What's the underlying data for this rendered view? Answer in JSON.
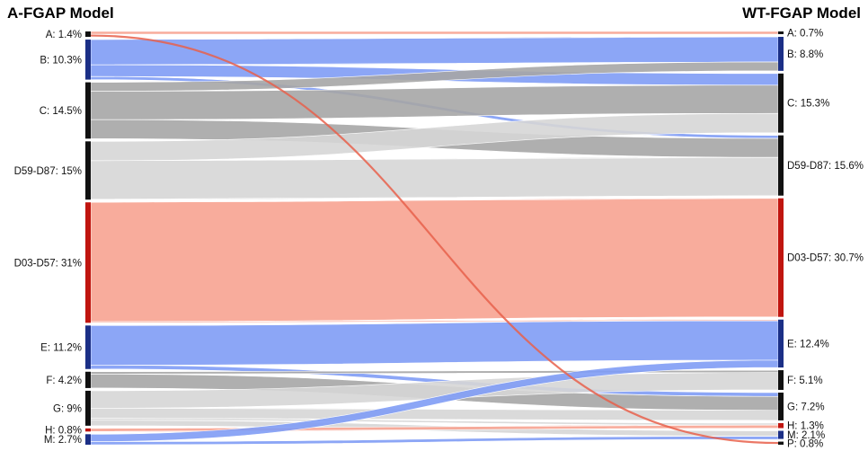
{
  "titles": {
    "left": "A-FGAP Model",
    "right": "WT-FGAP Model"
  },
  "colors": {
    "blue": "#7f9cf5",
    "gray_dark": "#a6a6a6",
    "gray_light": "#d6d6d6",
    "red": "#f7a391",
    "red_line": "#e8604b",
    "node_dark": "#111111",
    "node_blue": "#1b2f86",
    "node_red": "#c0150f"
  },
  "chart_data": {
    "type": "sankey",
    "left_nodes": [
      {
        "id": "A",
        "label": "A: 1.4%",
        "value": 1.4
      },
      {
        "id": "B",
        "label": "B: 10.3%",
        "value": 10.3
      },
      {
        "id": "C",
        "label": "C: 14.5%",
        "value": 14.5
      },
      {
        "id": "D59-D87",
        "label": "D59-D87:  15%",
        "value": 15
      },
      {
        "id": "D03-D57",
        "label": "D03-D57:  31%",
        "value": 31
      },
      {
        "id": "E",
        "label": "E: 11.2%",
        "value": 11.2
      },
      {
        "id": "F",
        "label": "F: 4.2%",
        "value": 4.2
      },
      {
        "id": "G",
        "label": "G:   9%",
        "value": 9
      },
      {
        "id": "H",
        "label": "H: 0.8%",
        "value": 0.8
      },
      {
        "id": "M",
        "label": "M: 2.7%",
        "value": 2.7
      }
    ],
    "right_nodes": [
      {
        "id": "A",
        "label": "A: 0.7%",
        "value": 0.7
      },
      {
        "id": "B",
        "label": "B: 8.8%",
        "value": 8.8
      },
      {
        "id": "C",
        "label": "C: 15.3%",
        "value": 15.3
      },
      {
        "id": "D59-D87",
        "label": "D59-D87: 15.6%",
        "value": 15.6
      },
      {
        "id": "D03-D57",
        "label": "D03-D57: 30.7%",
        "value": 30.7
      },
      {
        "id": "E",
        "label": "E: 12.4%",
        "value": 12.4
      },
      {
        "id": "F",
        "label": "F: 5.1%",
        "value": 5.1
      },
      {
        "id": "G",
        "label": "G: 7.2%",
        "value": 7.2
      },
      {
        "id": "H",
        "label": "H: 1.3%",
        "value": 1.3
      },
      {
        "id": "M",
        "label": "M: 2.1%",
        "value": 2.1
      },
      {
        "id": "P",
        "label": "P: 0.8%",
        "value": 0.8
      }
    ],
    "flows": [
      {
        "from": "A",
        "to": "A",
        "value": 0.7,
        "color": "red"
      },
      {
        "from": "A",
        "to": "P",
        "value": 0.7,
        "color": "red_line"
      },
      {
        "from": "B",
        "to": "B",
        "value": 6.5,
        "color": "blue"
      },
      {
        "from": "B",
        "to": "C",
        "value": 3.0,
        "color": "blue"
      },
      {
        "from": "B",
        "to": "D59-D87",
        "value": 0.8,
        "color": "blue"
      },
      {
        "from": "C",
        "to": "B",
        "value": 2.3,
        "color": "gray_dark"
      },
      {
        "from": "C",
        "to": "C",
        "value": 7.3,
        "color": "gray_dark"
      },
      {
        "from": "C",
        "to": "D59-D87",
        "value": 4.9,
        "color": "gray_dark"
      },
      {
        "from": "D59-D87",
        "to": "C",
        "value": 5.0,
        "color": "gray_light"
      },
      {
        "from": "D59-D87",
        "to": "D59-D87",
        "value": 9.9,
        "color": "gray_light"
      },
      {
        "from": "D03-D57",
        "to": "D03-D57",
        "value": 30.7,
        "color": "red"
      },
      {
        "from": "D03-D57",
        "to": "E",
        "value": 0.3,
        "color": "red"
      },
      {
        "from": "E",
        "to": "E",
        "value": 10.2,
        "color": "blue"
      },
      {
        "from": "E",
        "to": "G",
        "value": 1.0,
        "color": "blue"
      },
      {
        "from": "F",
        "to": "F",
        "value": 0.6,
        "color": "gray_dark"
      },
      {
        "from": "F",
        "to": "G",
        "value": 3.6,
        "color": "gray_dark"
      },
      {
        "from": "G",
        "to": "F",
        "value": 4.5,
        "color": "gray_light"
      },
      {
        "from": "G",
        "to": "G",
        "value": 2.6,
        "color": "gray_light"
      },
      {
        "from": "G",
        "to": "H",
        "value": 0.5,
        "color": "gray_light"
      },
      {
        "from": "G",
        "to": "M",
        "value": 1.4,
        "color": "gray_light"
      },
      {
        "from": "H",
        "to": "H",
        "value": 0.8,
        "color": "red"
      },
      {
        "from": "M",
        "to": "E",
        "value": 1.9,
        "color": "blue"
      },
      {
        "from": "M",
        "to": "M",
        "value": 0.8,
        "color": "blue"
      }
    ]
  }
}
